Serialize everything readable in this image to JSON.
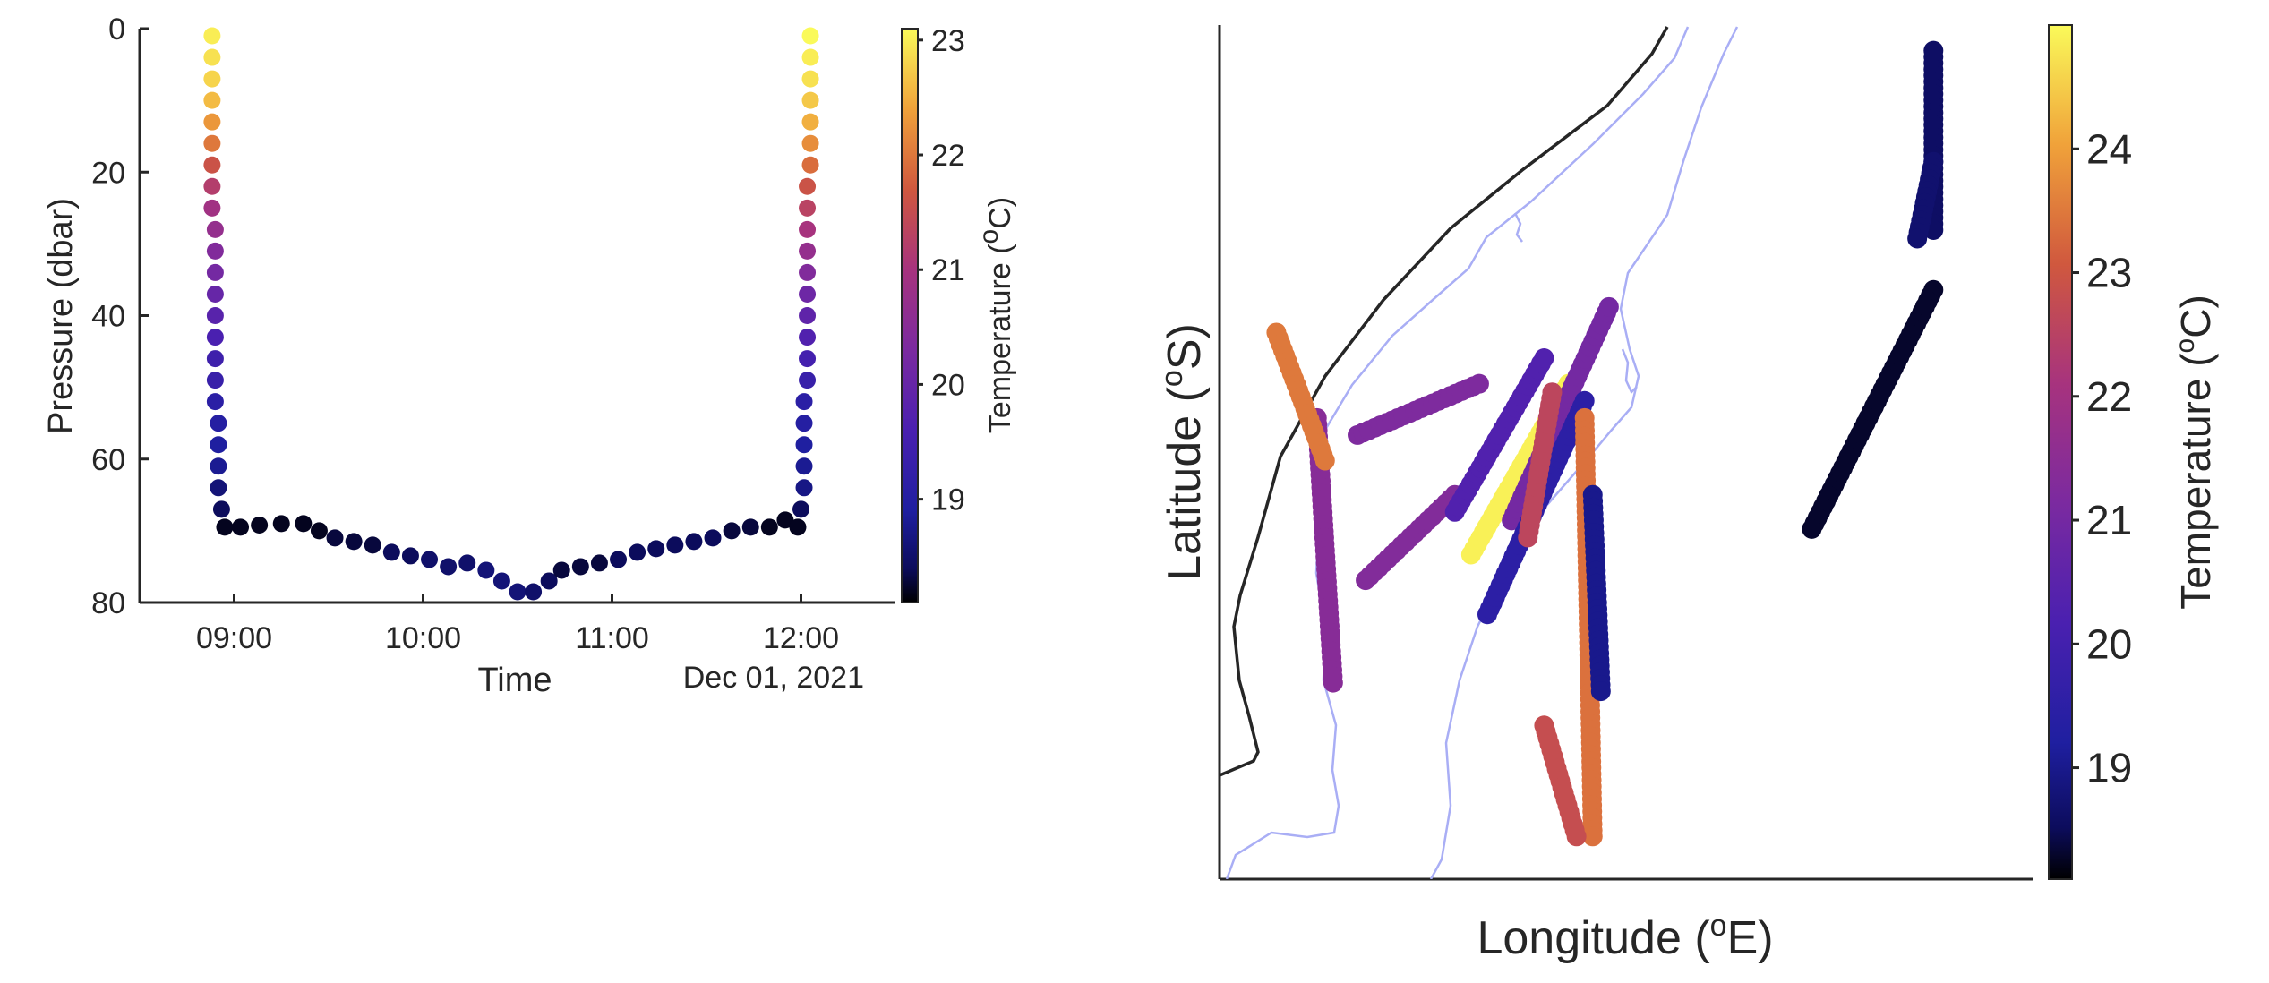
{
  "chart_data": [
    {
      "type": "scatter",
      "colorbar_label_text": "Temperature (",
      "colorbar_label_sup": "o",
      "colorbar_label_end": "C)",
      "ylabel": "Pressure (dbar)",
      "xlabel": "Time",
      "date_label": "Dec 01, 2021",
      "y_reversed": true,
      "ylim": [
        0,
        80
      ],
      "xlim": [
        "08:30",
        "12:30"
      ],
      "y_ticks": [
        0,
        20,
        40,
        60,
        80
      ],
      "x_ticks": [
        "09:00",
        "10:00",
        "11:00",
        "12:00"
      ],
      "colorbar_ticks": [
        19,
        20,
        21,
        22,
        23
      ],
      "colorbar_range": [
        18.1,
        23.1
      ],
      "colormap": "plasma-like",
      "series": [
        {
          "points": [
            {
              "x": "08:53",
              "y": 1,
              "c": 23.0
            },
            {
              "x": "08:53",
              "y": 4,
              "c": 22.9
            },
            {
              "x": "08:53",
              "y": 7,
              "c": 22.8
            },
            {
              "x": "08:53",
              "y": 10,
              "c": 22.6
            },
            {
              "x": "08:53",
              "y": 13,
              "c": 22.3
            },
            {
              "x": "08:53",
              "y": 16,
              "c": 22.0
            },
            {
              "x": "08:53",
              "y": 19,
              "c": 21.6
            },
            {
              "x": "08:53",
              "y": 22,
              "c": 21.2
            },
            {
              "x": "08:53",
              "y": 25,
              "c": 20.9
            },
            {
              "x": "08:54",
              "y": 28,
              "c": 20.7
            },
            {
              "x": "08:54",
              "y": 31,
              "c": 20.4
            },
            {
              "x": "08:54",
              "y": 34,
              "c": 20.2
            },
            {
              "x": "08:54",
              "y": 37,
              "c": 20.0
            },
            {
              "x": "08:54",
              "y": 40,
              "c": 19.8
            },
            {
              "x": "08:54",
              "y": 43,
              "c": 19.6
            },
            {
              "x": "08:54",
              "y": 46,
              "c": 19.4
            },
            {
              "x": "08:54",
              "y": 49,
              "c": 19.3
            },
            {
              "x": "08:54",
              "y": 52,
              "c": 19.1
            },
            {
              "x": "08:55",
              "y": 55,
              "c": 19.0
            },
            {
              "x": "08:55",
              "y": 58,
              "c": 18.9
            },
            {
              "x": "08:55",
              "y": 61,
              "c": 18.8
            },
            {
              "x": "08:55",
              "y": 64,
              "c": 18.6
            },
            {
              "x": "08:56",
              "y": 67,
              "c": 18.4
            },
            {
              "x": "08:57",
              "y": 69.5,
              "c": 18.2
            },
            {
              "x": "09:02",
              "y": 69.5,
              "c": 18.2
            },
            {
              "x": "09:08",
              "y": 69.2,
              "c": 18.2
            },
            {
              "x": "09:15",
              "y": 69.0,
              "c": 18.2
            },
            {
              "x": "09:22",
              "y": 69.0,
              "c": 18.2
            },
            {
              "x": "09:27",
              "y": 70,
              "c": 18.2
            },
            {
              "x": "09:32",
              "y": 71,
              "c": 18.3
            },
            {
              "x": "09:38",
              "y": 71.5,
              "c": 18.3
            },
            {
              "x": "09:44",
              "y": 72,
              "c": 18.3
            },
            {
              "x": "09:50",
              "y": 73,
              "c": 18.4
            },
            {
              "x": "09:56",
              "y": 73.5,
              "c": 18.4
            },
            {
              "x": "10:02",
              "y": 74,
              "c": 18.5
            },
            {
              "x": "10:08",
              "y": 75,
              "c": 18.5
            },
            {
              "x": "10:14",
              "y": 74.5,
              "c": 18.5
            },
            {
              "x": "10:20",
              "y": 75.5,
              "c": 18.6
            },
            {
              "x": "10:25",
              "y": 77,
              "c": 18.6
            },
            {
              "x": "10:30",
              "y": 78.5,
              "c": 18.6
            },
            {
              "x": "10:35",
              "y": 78.5,
              "c": 18.5
            },
            {
              "x": "10:40",
              "y": 77,
              "c": 18.4
            },
            {
              "x": "10:44",
              "y": 75.5,
              "c": 18.3
            },
            {
              "x": "10:50",
              "y": 75,
              "c": 18.3
            },
            {
              "x": "10:56",
              "y": 74.5,
              "c": 18.3
            },
            {
              "x": "11:02",
              "y": 74,
              "c": 18.4
            },
            {
              "x": "11:08",
              "y": 73,
              "c": 18.4
            },
            {
              "x": "11:14",
              "y": 72.5,
              "c": 18.4
            },
            {
              "x": "11:20",
              "y": 72,
              "c": 18.4
            },
            {
              "x": "11:26",
              "y": 71.5,
              "c": 18.4
            },
            {
              "x": "11:32",
              "y": 71,
              "c": 18.4
            },
            {
              "x": "11:38",
              "y": 70,
              "c": 18.3
            },
            {
              "x": "11:44",
              "y": 69.5,
              "c": 18.3
            },
            {
              "x": "11:50",
              "y": 69.5,
              "c": 18.2
            },
            {
              "x": "11:55",
              "y": 68.5,
              "c": 18.2
            },
            {
              "x": "11:59",
              "y": 69.5,
              "c": 18.2
            },
            {
              "x": "12:00",
              "y": 67,
              "c": 18.4
            },
            {
              "x": "12:01",
              "y": 64,
              "c": 18.7
            },
            {
              "x": "12:01",
              "y": 61,
              "c": 18.8
            },
            {
              "x": "12:01",
              "y": 58,
              "c": 18.9
            },
            {
              "x": "12:01",
              "y": 55,
              "c": 19.0
            },
            {
              "x": "12:01",
              "y": 52,
              "c": 19.1
            },
            {
              "x": "12:02",
              "y": 49,
              "c": 19.3
            },
            {
              "x": "12:02",
              "y": 46,
              "c": 19.5
            },
            {
              "x": "12:02",
              "y": 43,
              "c": 19.7
            },
            {
              "x": "12:02",
              "y": 40,
              "c": 19.9
            },
            {
              "x": "12:02",
              "y": 37,
              "c": 20.1
            },
            {
              "x": "12:02",
              "y": 34,
              "c": 20.4
            },
            {
              "x": "12:02",
              "y": 31,
              "c": 20.7
            },
            {
              "x": "12:02",
              "y": 28,
              "c": 21.0
            },
            {
              "x": "12:02",
              "y": 25,
              "c": 21.3
            },
            {
              "x": "12:02",
              "y": 22,
              "c": 21.6
            },
            {
              "x": "12:03",
              "y": 19,
              "c": 21.9
            },
            {
              "x": "12:03",
              "y": 16,
              "c": 22.2
            },
            {
              "x": "12:03",
              "y": 13,
              "c": 22.5
            },
            {
              "x": "12:03",
              "y": 10,
              "c": 22.7
            },
            {
              "x": "12:03",
              "y": 7,
              "c": 22.9
            },
            {
              "x": "12:03",
              "y": 4,
              "c": 23.0
            },
            {
              "x": "12:03",
              "y": 1,
              "c": 23.1
            }
          ]
        }
      ]
    },
    {
      "type": "scatter",
      "xlabel_text": "Longitude (",
      "xlabel_sup": "o",
      "xlabel_end": "E)",
      "ylabel_text": "Latitude (",
      "ylabel_sup": "o",
      "ylabel_end": "S)",
      "colorbar_label_text": "Temperature (",
      "colorbar_label_sup": "o",
      "colorbar_label_end": "C)",
      "colorbar_ticks": [
        19,
        20,
        21,
        22,
        23,
        24
      ],
      "colorbar_range": [
        18.1,
        25.0
      ],
      "colormap": "plasma-like",
      "tick_labels_shown": false,
      "note": "map tracks; positions given in normalized map coordinates (0-1 across the unlabeled axes)",
      "coastline_color": "#262626",
      "contour_color": "#a9aef5",
      "tracks": [
        {
          "from": [
            0.88,
            0.03
          ],
          "to": [
            0.88,
            0.24
          ],
          "c": 18.6
        },
        {
          "from": [
            0.88,
            0.16
          ],
          "to": [
            0.86,
            0.25
          ],
          "c": 18.7
        },
        {
          "from": [
            0.88,
            0.31
          ],
          "to": [
            0.73,
            0.59
          ],
          "c": 18.3
        },
        {
          "from": [
            0.12,
            0.46
          ],
          "to": [
            0.14,
            0.77
          ],
          "c": 21.4
        },
        {
          "from": [
            0.07,
            0.36
          ],
          "to": [
            0.13,
            0.51
          ],
          "c": 23.5
        },
        {
          "from": [
            0.17,
            0.48
          ],
          "to": [
            0.32,
            0.42
          ],
          "c": 21.2
        },
        {
          "from": [
            0.18,
            0.65
          ],
          "to": [
            0.29,
            0.55
          ],
          "c": 21.3
        },
        {
          "from": [
            0.29,
            0.57
          ],
          "to": [
            0.4,
            0.39
          ],
          "c": 20.3
        },
        {
          "from": [
            0.31,
            0.62
          ],
          "to": [
            0.43,
            0.42
          ],
          "c": 24.9
        },
        {
          "from": [
            0.36,
            0.58
          ],
          "to": [
            0.48,
            0.33
          ],
          "c": 21.0
        },
        {
          "from": [
            0.33,
            0.69
          ],
          "to": [
            0.45,
            0.44
          ],
          "c": 19.5
        },
        {
          "from": [
            0.38,
            0.6
          ],
          "to": [
            0.41,
            0.43
          ],
          "c": 22.6
        },
        {
          "from": [
            0.45,
            0.46
          ],
          "to": [
            0.46,
            0.95
          ],
          "c": 23.4
        },
        {
          "from": [
            0.46,
            0.55
          ],
          "to": [
            0.47,
            0.78
          ],
          "c": 19.0
        },
        {
          "from": [
            0.4,
            0.82
          ],
          "to": [
            0.44,
            0.95
          ],
          "c": 22.8
        }
      ]
    }
  ]
}
